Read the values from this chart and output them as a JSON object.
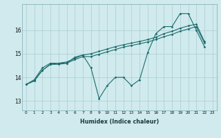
{
  "xlabel": "Humidex (Indice chaleur)",
  "bg_color": "#d0eaed",
  "line_color": "#1a6b6b",
  "grid_color": "#aacdd2",
  "xlim": [
    -0.5,
    23.5
  ],
  "ylim": [
    12.6,
    17.1
  ],
  "yticks": [
    13,
    14,
    15,
    16
  ],
  "xticks": [
    0,
    1,
    2,
    3,
    4,
    5,
    6,
    7,
    8,
    9,
    10,
    11,
    12,
    13,
    14,
    15,
    16,
    17,
    18,
    19,
    20,
    21,
    22,
    23
  ],
  "line_zigzag_x": [
    0,
    1,
    2,
    3,
    4,
    5,
    6,
    7,
    8,
    9,
    10,
    11,
    12,
    13,
    14,
    15,
    16,
    17,
    18,
    19,
    20,
    21,
    22
  ],
  "line_zigzag_y": [
    13.7,
    13.9,
    14.4,
    14.6,
    14.6,
    14.6,
    14.85,
    14.95,
    14.4,
    13.1,
    13.65,
    14.0,
    14.0,
    13.65,
    13.9,
    15.05,
    15.85,
    16.15,
    16.15,
    16.7,
    16.7,
    16.0,
    15.3
  ],
  "line_straight1_x": [
    0,
    1,
    2,
    3,
    4,
    5,
    6,
    7,
    8,
    9,
    10,
    11,
    12,
    13,
    14,
    15,
    16,
    17,
    18,
    19,
    20,
    21,
    22
  ],
  "line_straight1_y": [
    13.7,
    13.85,
    14.3,
    14.55,
    14.55,
    14.6,
    14.75,
    14.88,
    14.88,
    14.98,
    15.08,
    15.18,
    15.28,
    15.35,
    15.42,
    15.5,
    15.6,
    15.72,
    15.82,
    15.95,
    16.05,
    16.15,
    15.45
  ],
  "line_straight2_x": [
    0,
    1,
    2,
    3,
    4,
    5,
    6,
    7,
    8,
    9,
    10,
    11,
    12,
    13,
    14,
    15,
    16,
    17,
    18,
    19,
    20,
    21,
    22
  ],
  "line_straight2_y": [
    13.7,
    13.85,
    14.3,
    14.55,
    14.6,
    14.65,
    14.8,
    14.95,
    15.0,
    15.1,
    15.2,
    15.3,
    15.38,
    15.45,
    15.52,
    15.6,
    15.7,
    15.85,
    15.95,
    16.08,
    16.18,
    16.25,
    15.52
  ]
}
